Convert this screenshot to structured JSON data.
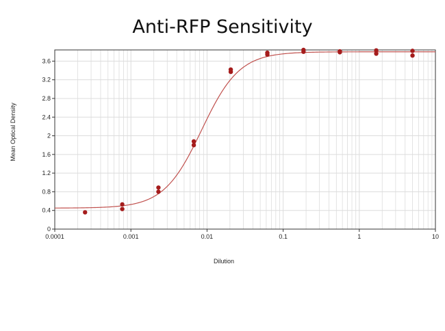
{
  "chart_data": {
    "type": "scatter",
    "title": "Anti-RFP Sensitivity",
    "xlabel": "Dilution",
    "ylabel": "Mean Optical Density",
    "x_scale": "log",
    "xlim": [
      0.0001,
      10
    ],
    "ylim": [
      0,
      3.84
    ],
    "x_ticks": [
      {
        "value": 0.0001,
        "label": "0.0001"
      },
      {
        "value": 0.001,
        "label": "0.001"
      },
      {
        "value": 0.01,
        "label": "0.01"
      },
      {
        "value": 0.1,
        "label": "0.1"
      },
      {
        "value": 1,
        "label": "1"
      },
      {
        "value": 10,
        "label": "10"
      }
    ],
    "y_ticks": [
      {
        "value": 0,
        "label": "0"
      },
      {
        "value": 0.4,
        "label": "0.4"
      },
      {
        "value": 0.8,
        "label": "0.8"
      },
      {
        "value": 1.2,
        "label": "1.2"
      },
      {
        "value": 1.6,
        "label": "1.6"
      },
      {
        "value": 2,
        "label": "2"
      },
      {
        "value": 2.4,
        "label": "2.4"
      },
      {
        "value": 2.8,
        "label": "2.8"
      },
      {
        "value": 3.2,
        "label": "3.2"
      },
      {
        "value": 3.6,
        "label": "3.6"
      }
    ],
    "grid": true,
    "points": [
      {
        "x": 0.00025,
        "y": 0.36
      },
      {
        "x": 0.00077,
        "y": 0.53
      },
      {
        "x": 0.00077,
        "y": 0.43
      },
      {
        "x": 0.0023,
        "y": 0.89
      },
      {
        "x": 0.0023,
        "y": 0.8
      },
      {
        "x": 0.0067,
        "y": 1.88
      },
      {
        "x": 0.0067,
        "y": 1.8
      },
      {
        "x": 0.0205,
        "y": 3.42
      },
      {
        "x": 0.0205,
        "y": 3.37
      },
      {
        "x": 0.062,
        "y": 3.78
      },
      {
        "x": 0.062,
        "y": 3.74
      },
      {
        "x": 0.185,
        "y": 3.84
      },
      {
        "x": 0.185,
        "y": 3.8
      },
      {
        "x": 0.555,
        "y": 3.81
      },
      {
        "x": 0.555,
        "y": 3.79
      },
      {
        "x": 1.67,
        "y": 3.83
      },
      {
        "x": 1.67,
        "y": 3.76
      },
      {
        "x": 5.0,
        "y": 3.82
      },
      {
        "x": 5.0,
        "y": 3.72
      }
    ],
    "fit_curve": {
      "bottom": 0.45,
      "top": 3.8,
      "ec50": 0.0085,
      "hill": 1.75
    },
    "colors": {
      "points": "#a51c1c",
      "curve": "#c0504d",
      "grid": "#dcdcdc",
      "frame": "#333333"
    }
  }
}
